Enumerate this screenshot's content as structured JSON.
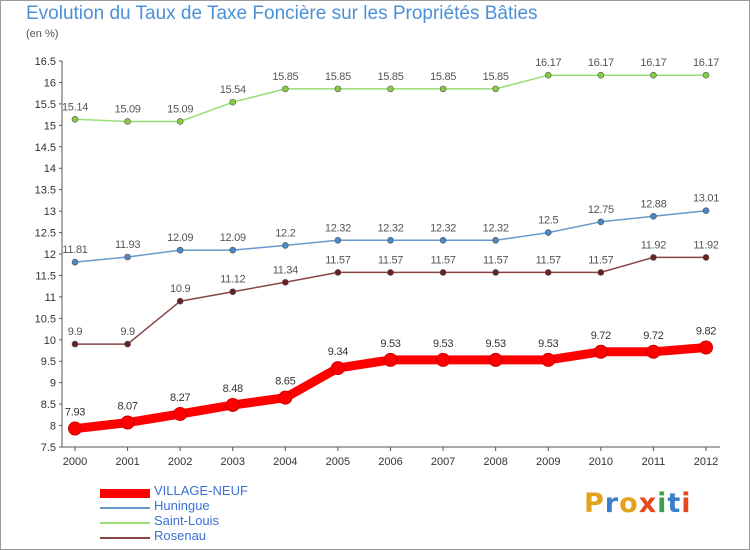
{
  "title": "Evolution du Taux de Taxe Foncière sur les Propriétés Bâties",
  "subtitle": "(en %)",
  "logo": {
    "letters": [
      "P",
      "r",
      "o",
      "x",
      "i",
      "t",
      "i"
    ],
    "colors": [
      "#e4a11b",
      "#3a7ecb",
      "#e4a11b",
      "#e44a1b",
      "#3aa04a",
      "#3a7ecb",
      "#e44a1b"
    ]
  },
  "chart_data": {
    "type": "line",
    "categories": [
      "2000",
      "2001",
      "2002",
      "2003",
      "2004",
      "2005",
      "2006",
      "2007",
      "2008",
      "2009",
      "2010",
      "2011",
      "2012"
    ],
    "ylim": [
      7.5,
      16.5
    ],
    "yticks": [
      "7.5",
      "8",
      "8.5",
      "9",
      "9.5",
      "10",
      "10.5",
      "11",
      "11.5",
      "12",
      "12.5",
      "13",
      "13.5",
      "14",
      "14.5",
      "15",
      "15.5",
      "16",
      "16.5"
    ],
    "grid": false,
    "legend_position": "bottom-left",
    "series": [
      {
        "name": "VILLAGE-NEUF",
        "color": "#ff0000",
        "marker_color": "#ff0000",
        "label_color": "#333333",
        "thick": true,
        "values": [
          7.93,
          8.07,
          8.27,
          8.48,
          8.65,
          9.34,
          9.53,
          9.53,
          9.53,
          9.53,
          9.72,
          9.72,
          9.82
        ],
        "labels": [
          "7.93",
          "8.07",
          "8.27",
          "8.48",
          "8.65",
          "9.34",
          "9.53",
          "9.53",
          "9.53",
          "9.53",
          "9.72",
          "9.72",
          "9.82"
        ]
      },
      {
        "name": "Huningue",
        "color": "#6699cc",
        "marker_color": "#4a88c8",
        "label_color": "#555555",
        "thick": false,
        "values": [
          11.81,
          11.93,
          12.09,
          12.09,
          12.2,
          12.32,
          12.32,
          12.32,
          12.32,
          12.5,
          12.75,
          12.88,
          13.01
        ],
        "labels": [
          "11.81",
          "11.93",
          "12.09",
          "12.09",
          "12.2",
          "12.32",
          "12.32",
          "12.32",
          "12.32",
          "12.5",
          "12.75",
          "12.88",
          "13.01"
        ]
      },
      {
        "name": "Saint-Louis",
        "color": "#99dd77",
        "marker_color": "#88cc44",
        "label_color": "#555555",
        "thick": false,
        "values": [
          15.14,
          15.09,
          15.09,
          15.54,
          15.85,
          15.85,
          15.85,
          15.85,
          15.85,
          16.17,
          16.17,
          16.17,
          16.17
        ],
        "labels": [
          "15.14",
          "15.09",
          "15.09",
          "15.54",
          "15.85",
          "15.85",
          "15.85",
          "15.85",
          "15.85",
          "16.17",
          "16.17",
          "16.17",
          "16.17"
        ]
      },
      {
        "name": "Rosenau",
        "color": "#884444",
        "marker_color": "#662222",
        "label_color": "#555555",
        "thick": false,
        "values": [
          9.9,
          9.9,
          10.9,
          11.12,
          11.34,
          11.57,
          11.57,
          11.57,
          11.57,
          11.57,
          11.57,
          11.92,
          11.92
        ],
        "labels": [
          "9.9",
          "9.9",
          "10.9",
          "11.12",
          "11.34",
          "11.57",
          "11.57",
          "11.57",
          "11.57",
          "11.57",
          "11.57",
          "11.92",
          "11.92"
        ]
      }
    ]
  }
}
